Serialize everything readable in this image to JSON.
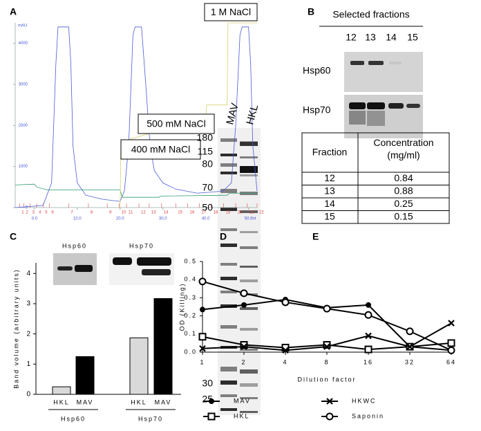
{
  "panel_labels": [
    "A",
    "B",
    "C",
    "D",
    "E"
  ],
  "chart_data": [
    {
      "type": "chromatogram",
      "y_label": "mAU",
      "x_label": "ml",
      "xlim": [
        -4.5,
        52
      ],
      "ylim": [
        0,
        4500
      ],
      "yticks": [
        0,
        1000,
        2000,
        3000,
        4000
      ],
      "xticks": [
        {
          "value": 0,
          "label": "0.0"
        },
        {
          "value": 10,
          "label": "10.0"
        },
        {
          "value": 20,
          "label": "20.0"
        },
        {
          "value": 30,
          "label": "30.0"
        },
        {
          "value": 40,
          "label": "40.0"
        },
        {
          "value": 50,
          "label": "50.0"
        }
      ],
      "annotations": [
        "1 M NaCl",
        "500 mM NaCl",
        "400 mM NaCl"
      ],
      "fractions": {
        "labels": [
          1,
          2,
          3,
          4,
          5,
          6,
          7,
          8,
          9,
          10,
          11,
          12,
          13,
          14,
          15,
          16,
          17,
          18,
          19,
          20,
          21,
          22
        ],
        "x": [
          -3.5,
          -2.5,
          -1,
          0.5,
          2,
          3.5,
          8,
          12.6,
          17,
          19.8,
          21.5,
          24.4,
          26.8,
          29.7,
          33,
          35.8,
          38.5,
          41.3,
          44.2,
          47,
          49.7,
          52
        ]
      },
      "series": [
        {
          "color": "#4a5ad8",
          "x": [
            -4.5,
            2,
            4,
            5,
            5.5,
            8,
            8.5,
            9,
            10,
            12,
            16,
            20,
            21,
            22,
            23,
            23.5,
            25,
            26,
            27,
            28,
            30,
            33,
            38,
            44,
            46,
            47,
            48,
            48.5,
            50,
            50.5,
            51,
            52
          ],
          "values": [
            0,
            50,
            600,
            3500,
            4400,
            4400,
            3500,
            1500,
            600,
            300,
            200,
            150,
            400,
            1500,
            4200,
            4400,
            4400,
            3000,
            1500,
            900,
            600,
            450,
            350,
            400,
            600,
            2000,
            4200,
            4400,
            4400,
            3500,
            1500,
            400
          ]
        },
        {
          "color": "#2e9a6a",
          "x": [
            -4.5,
            0,
            0.5,
            3,
            20,
            20.5,
            29,
            29.5,
            45,
            45.5,
            52
          ],
          "values": [
            550,
            570,
            500,
            430,
            430,
            250,
            250,
            280,
            300,
            350,
            350
          ]
        },
        {
          "color": "#d8d070",
          "x": [
            20,
            20.2,
            30,
            30.2,
            40,
            40.2,
            45,
            45.2,
            52
          ],
          "values": [
            0,
            1600,
            1900,
            2050,
            2050,
            2500,
            2500,
            4500,
            4500
          ]
        }
      ]
    },
    {
      "type": "bar",
      "y_label": "Band volume (arbitrary units)",
      "categories": [
        "HKL",
        "MAV",
        "HKL",
        "MAV"
      ],
      "groups": [
        "Hsp60",
        "Hsp70"
      ],
      "inset_labels": [
        "Hsp60",
        "Hsp70"
      ],
      "values": [
        0.25,
        1.25,
        1.87,
        3.17
      ],
      "colors": [
        "#d9d9d9",
        "#000000",
        "#d9d9d9",
        "#000000"
      ],
      "ylim": [
        0,
        4.35
      ],
      "yticks": [
        0,
        1,
        2,
        3,
        4
      ]
    },
    {
      "type": "line",
      "x_label": "Dilution factor",
      "y_label": "OD (Killing)",
      "categories": [
        "1",
        "2",
        "4",
        "8",
        "16",
        "32",
        "64"
      ],
      "ylim": [
        0,
        0.5
      ],
      "yticks": [
        {
          "value": 0,
          "label": "0.0"
        },
        0.1,
        0.2,
        0.3,
        0.4,
        0.5
      ],
      "series": [
        {
          "name": "MAV",
          "marker": "filled-circle",
          "color": "#000000",
          "values": [
            0.235,
            0.26,
            0.29,
            0.245,
            0.26,
            0.03,
            0.01
          ]
        },
        {
          "name": "HKL",
          "marker": "square",
          "color": "#000000",
          "values": [
            0.085,
            0.04,
            0.025,
            0.04,
            0.015,
            0.03,
            0.05
          ]
        },
        {
          "name": "HKWC",
          "marker": "x",
          "color": "#000000",
          "values": [
            0.02,
            0.03,
            0.01,
            0.03,
            0.09,
            0.03,
            0.16
          ]
        },
        {
          "name": "Saponin",
          "marker": "circle",
          "color": "#000000",
          "values": [
            0.39,
            0.325,
            0.275,
            0.24,
            0.205,
            0.115,
            0.01
          ]
        }
      ]
    }
  ],
  "blot_b": {
    "title": "Selected fractions",
    "lanes": [
      12,
      13,
      14,
      15
    ],
    "rows": [
      "Hsp60",
      "Hsp70"
    ]
  },
  "table": {
    "header": [
      "Fraction",
      "Concentration (mg/ml)"
    ],
    "rows": [
      [
        12,
        0.84
      ],
      [
        13,
        0.88
      ],
      [
        14,
        0.25
      ],
      [
        15,
        0.15
      ]
    ]
  },
  "gel_d": {
    "lanes": [
      "MAV",
      "HKL"
    ],
    "markers": [
      180,
      115,
      80,
      70,
      50,
      30,
      25
    ]
  }
}
